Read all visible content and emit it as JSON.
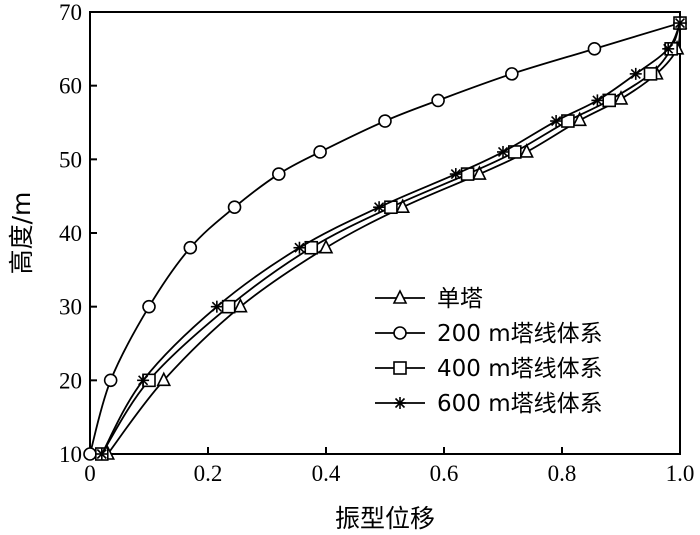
{
  "chart_data": {
    "type": "line",
    "title": "",
    "xlabel": "振型位移",
    "ylabel": "高度/m",
    "xlim": [
      0,
      1.0
    ],
    "ylim": [
      10,
      70
    ],
    "xticks": [
      "0",
      "0.2",
      "0.4",
      "0.6",
      "0.8",
      "1.0"
    ],
    "yticks": [
      "10",
      "20",
      "30",
      "40",
      "50",
      "60",
      "70"
    ],
    "legend_position": "bottom-right",
    "grid": false,
    "series": [
      {
        "name": "单塔",
        "marker": "triangle",
        "color": "#000000",
        "points": [
          [
            0.03,
            10
          ],
          [
            0.125,
            20
          ],
          [
            0.255,
            30
          ],
          [
            0.4,
            38
          ],
          [
            0.53,
            43.5
          ],
          [
            0.66,
            48
          ],
          [
            0.74,
            51
          ],
          [
            0.83,
            55.3
          ],
          [
            0.9,
            58.2
          ],
          [
            0.96,
            61.6
          ],
          [
            0.995,
            65
          ],
          [
            1.0,
            68.5
          ]
        ]
      },
      {
        "name": "200 m塔线体系",
        "marker": "circle",
        "color": "#000000",
        "points": [
          [
            0.0,
            10
          ],
          [
            0.035,
            20
          ],
          [
            0.1,
            30
          ],
          [
            0.17,
            38
          ],
          [
            0.245,
            43.5
          ],
          [
            0.32,
            48
          ],
          [
            0.39,
            51
          ],
          [
            0.5,
            55.2
          ],
          [
            0.59,
            58
          ],
          [
            0.715,
            61.6
          ],
          [
            0.855,
            65
          ],
          [
            1.0,
            68.5
          ]
        ]
      },
      {
        "name": "400 m塔线体系",
        "marker": "square",
        "color": "#000000",
        "points": [
          [
            0.02,
            10
          ],
          [
            0.1,
            20
          ],
          [
            0.235,
            30
          ],
          [
            0.375,
            38
          ],
          [
            0.51,
            43.5
          ],
          [
            0.64,
            48
          ],
          [
            0.72,
            51
          ],
          [
            0.81,
            55.2
          ],
          [
            0.88,
            58
          ],
          [
            0.95,
            61.6
          ],
          [
            0.985,
            65
          ],
          [
            1.0,
            68.5
          ]
        ]
      },
      {
        "name": "600 m塔线体系",
        "marker": "star",
        "color": "#000000",
        "points": [
          [
            0.02,
            10
          ],
          [
            0.09,
            20
          ],
          [
            0.215,
            30
          ],
          [
            0.355,
            38
          ],
          [
            0.49,
            43.5
          ],
          [
            0.62,
            48
          ],
          [
            0.7,
            51
          ],
          [
            0.79,
            55.2
          ],
          [
            0.86,
            58
          ],
          [
            0.925,
            61.6
          ],
          [
            0.98,
            65
          ],
          [
            1.0,
            68.5
          ]
        ]
      }
    ]
  }
}
